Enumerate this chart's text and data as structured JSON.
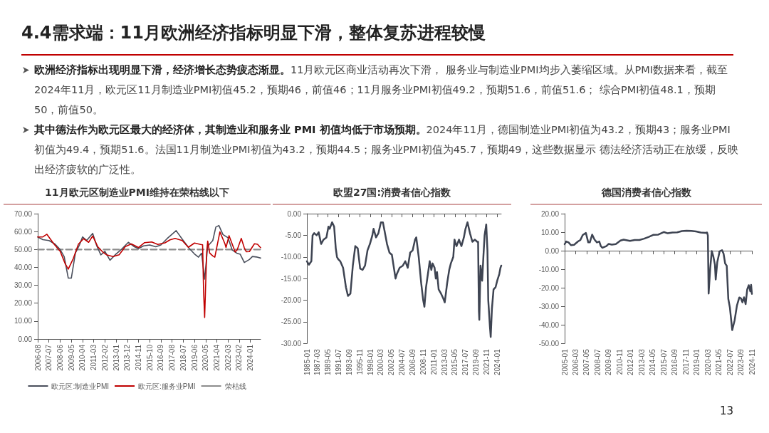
{
  "chart_data": [
    {
      "type": "other",
      "title": "4.4需求端：11月欧洲经济指标明显下滑，整体复苏进程较慢",
      "annotations": [
        "欧洲经济指标出现明显下滑，经济增长态势疲态渐显。",
        "11月欧元区商业活动再次下滑， 服务业与制造业PMI均步入萎缩区域。从PMI数据来看，截至2024年11月，欧元区11月制造业PMI初值45.2，预期46，前值46；11月服务业PMI初值49.2，预期51.6，前值51.6； 综合PMI初值48.1，预期50，前值50。",
        "其中德法作为欧元区最大的经济体，其制造业和服务业 PMI 初值均低于市场预期。",
        "2024年11月，德国制造业PMI初值为43.2，预期43；服务业PMI初值为49.4，预期51.6。法国11月制造业PMI初值为43.2，预期44.5；服务业PMI初值为45.7，预期49，这些数据显示 德法经济活动正在放缓，反映出经济疲软的广泛性。",
        "13"
      ]
    },
    {
      "type": "line",
      "title": "11月欧元区制造业PMI维持在荣枯线以下",
      "legend": "bottom",
      "marker": "none",
      "xlim": [
        "2006-08",
        "2024-11"
      ],
      "xticks": [
        "2006-08",
        "2007-07",
        "2008-06",
        "2009-05",
        "2010-04",
        "2011-03",
        "2012-02",
        "2013-01",
        "2013-12",
        "2014-11",
        "2015-10",
        "2016-09",
        "2017-08",
        "2018-07",
        "2019-06",
        "2020-05",
        "2021-04",
        "2022-03",
        "2023-02",
        "2024-01"
      ],
      "ylim": [
        0,
        70
      ],
      "yticks": [
        {
          "value": 0,
          "label": "0.00"
        },
        {
          "value": 10,
          "label": "10.00"
        },
        {
          "value": 20,
          "label": "20.00"
        },
        {
          "value": 30,
          "label": "30.00"
        },
        {
          "value": 40,
          "label": "40.00"
        },
        {
          "value": 50,
          "label": "50.00"
        },
        {
          "value": 60,
          "label": "60.00"
        },
        {
          "value": 70,
          "label": "70.00"
        }
      ],
      "series": [
        {
          "name": "欧元区:制造业PMI",
          "color": "#4a4f5c",
          "x": [
            "2006-08",
            "2007-01",
            "2007-07",
            "2008-01",
            "2008-06",
            "2008-10",
            "2009-02",
            "2009-05",
            "2009-09",
            "2010-01",
            "2010-04",
            "2010-08",
            "2011-02",
            "2011-06",
            "2011-10",
            "2012-02",
            "2012-07",
            "2013-01",
            "2013-07",
            "2014-01",
            "2014-07",
            "2014-11",
            "2015-04",
            "2015-10",
            "2016-04",
            "2016-09",
            "2017-03",
            "2017-12",
            "2018-07",
            "2019-01",
            "2019-06",
            "2019-10",
            "2020-01",
            "2020-04",
            "2020-07",
            "2020-12",
            "2021-03",
            "2021-06",
            "2021-10",
            "2022-03",
            "2022-07",
            "2022-12",
            "2023-03",
            "2023-07",
            "2023-12",
            "2024-03",
            "2024-07",
            "2024-11"
          ],
          "values": [
            57,
            55.5,
            55,
            53,
            50,
            46,
            34,
            34,
            48,
            52.5,
            57,
            55,
            59,
            52,
            47,
            49,
            44,
            47.5,
            50.5,
            54,
            51.5,
            50.5,
            52,
            52.5,
            51.5,
            52.5,
            56,
            60.5,
            55,
            50.5,
            47.5,
            45.7,
            47.9,
            33.4,
            51.8,
            55,
            62.5,
            63.4,
            58.3,
            56.5,
            49.8,
            47.8,
            47.3,
            42.7,
            44.4,
            46.1,
            45.8,
            45.2
          ]
        },
        {
          "name": "欧元区:服务业PMI",
          "color": "#c00000",
          "x": [
            "2006-08",
            "2007-01",
            "2007-05",
            "2007-12",
            "2008-06",
            "2008-11",
            "2009-02",
            "2009-07",
            "2009-12",
            "2010-05",
            "2010-10",
            "2011-02",
            "2011-07",
            "2011-12",
            "2012-04",
            "2012-10",
            "2013-04",
            "2013-10",
            "2014-04",
            "2014-11",
            "2015-05",
            "2015-12",
            "2016-06",
            "2017-01",
            "2017-06",
            "2017-11",
            "2018-06",
            "2018-12",
            "2019-06",
            "2019-12",
            "2020-02",
            "2020-03",
            "2020-04",
            "2020-06",
            "2020-07",
            "2020-09",
            "2020-12",
            "2021-02",
            "2021-07",
            "2021-12",
            "2022-01",
            "2022-04",
            "2022-10",
            "2022-12",
            "2023-04",
            "2023-07",
            "2023-09",
            "2023-12",
            "2024-03",
            "2024-05",
            "2024-08",
            "2024-10",
            "2024-11"
          ],
          "values": [
            57,
            57,
            58.5,
            53,
            49,
            42,
            39,
            45,
            53,
            56,
            54,
            57.5,
            51.5,
            48.5,
            46.9,
            46,
            47,
            51.6,
            53.1,
            51.1,
            53.8,
            54.2,
            52.8,
            53.7,
            55.4,
            56.2,
            55,
            51.2,
            53.6,
            52.8,
            52.6,
            26.4,
            12,
            48.3,
            54.7,
            48,
            46.4,
            45.7,
            59.8,
            53.1,
            51.1,
            57.7,
            48.6,
            49.8,
            56.2,
            50.9,
            48.7,
            48.8,
            51.5,
            53.2,
            52.9,
            51.6,
            51
          ]
        },
        {
          "name": "荣枯线",
          "color": "#8c8c8c",
          "line_style": "dashed",
          "x": [
            "2006-08",
            "2024-11"
          ],
          "values": [
            50,
            50
          ]
        }
      ]
    },
    {
      "type": "line",
      "title": "欧盟27国:消费者信心指数",
      "marker": "none",
      "xlim": [
        "1985-01",
        "2024-11"
      ],
      "xticks": [
        "1985-01",
        "1987-03",
        "1989-05",
        "1991-07",
        "1993-09",
        "1995-11",
        "1998-01",
        "2000-03",
        "2002-05",
        "2004-07",
        "2006-09",
        "2008-11",
        "2011-01",
        "2013-03",
        "2015-05",
        "2017-07",
        "2019-09",
        "2021-11",
        "2024-01"
      ],
      "ylim": [
        -30,
        0
      ],
      "yticks": [
        {
          "value": -30,
          "label": "-30.00"
        },
        {
          "value": -25,
          "label": "-25.00"
        },
        {
          "value": -20,
          "label": "-20.00"
        },
        {
          "value": -15,
          "label": "-15.00"
        },
        {
          "value": -10,
          "label": "-10.00"
        },
        {
          "value": -5,
          "label": "-5.00"
        },
        {
          "value": 0,
          "label": "0.00"
        }
      ],
      "series": [
        {
          "color": "#3e4452",
          "x": [
            "1985-01",
            "1985-06",
            "1985-12",
            "1986-03",
            "1986-07",
            "1987-01",
            "1987-06",
            "1987-12",
            "1988-06",
            "1989-01",
            "1989-06",
            "1989-09",
            "1990-03",
            "1990-08",
            "1990-12",
            "1991-03",
            "1991-06",
            "1991-11",
            "1992-06",
            "1993-01",
            "1993-06",
            "1993-12",
            "1994-06",
            "1994-12",
            "1995-06",
            "1995-12",
            "1996-06",
            "1996-12",
            "1997-06",
            "1997-12",
            "1998-06",
            "1998-09",
            "1999-03",
            "1999-09",
            "2000-03",
            "2000-08",
            "2000-12",
            "2001-06",
            "2001-12",
            "2002-06",
            "2003-03",
            "2003-06",
            "2004-01",
            "2004-09",
            "2005-03",
            "2005-09",
            "2006-03",
            "2006-09",
            "2007-03",
            "2007-06",
            "2007-12",
            "2008-06",
            "2008-11",
            "2009-02",
            "2009-06",
            "2009-12",
            "2010-03",
            "2010-07",
            "2010-10",
            "2011-03",
            "2011-06",
            "2011-09",
            "2012-01",
            "2012-07",
            "2012-12",
            "2013-04",
            "2013-10",
            "2014-03",
            "2014-07",
            "2015-01",
            "2015-04",
            "2015-09",
            "2016-03",
            "2016-09",
            "2017-03",
            "2017-07",
            "2017-12",
            "2018-06",
            "2018-12",
            "2019-06",
            "2019-12",
            "2020-02",
            "2020-04",
            "2020-05",
            "2020-08",
            "2020-12",
            "2021-03",
            "2021-06",
            "2021-10",
            "2022-01",
            "2022-03",
            "2022-07",
            "2022-09",
            "2022-12",
            "2023-04",
            "2023-09",
            "2024-01",
            "2024-06",
            "2024-09",
            "2024-11"
          ],
          "values": [
            -11,
            -11.8,
            -11,
            -5,
            -4.5,
            -5,
            -4.3,
            -7,
            -6,
            -5.5,
            -3,
            -3.5,
            -2,
            -3,
            -8,
            -10,
            -10.5,
            -11,
            -12.5,
            -17,
            -19,
            -18.5,
            -12,
            -7.5,
            -8,
            -12.7,
            -13,
            -12,
            -8.5,
            -7,
            -5,
            -3.5,
            -5.5,
            -4.5,
            -2,
            -2,
            -4,
            -7,
            -9,
            -9.5,
            -15,
            -14,
            -12.5,
            -12,
            -11,
            -12.5,
            -9,
            -8.5,
            -6,
            -5.5,
            -10,
            -16,
            -20,
            -21.5,
            -17,
            -13,
            -11,
            -13,
            -11.5,
            -12.5,
            -15,
            -13.5,
            -17.5,
            -18.5,
            -19.5,
            -20.5,
            -16,
            -13,
            -11.5,
            -10,
            -6,
            -7.5,
            -6,
            -7.5,
            -5.5,
            -3.5,
            -2,
            -4.5,
            -6.5,
            -6,
            -6.5,
            -6.5,
            -22.5,
            -24.5,
            -12,
            -15.5,
            -10,
            -5,
            -2.5,
            -8.5,
            -20,
            -26,
            -28.5,
            -22,
            -17.5,
            -17,
            -15.5,
            -14,
            -12.5,
            -12
          ]
        }
      ]
    },
    {
      "type": "line",
      "title": "德国消费者信心指数",
      "marker": "none",
      "xlim": [
        "2005-01",
        "2024-11"
      ],
      "xticks": [
        "2005-01",
        "2006-03",
        "2007-05",
        "2008-07",
        "2009-09",
        "2010-11",
        "2012-01",
        "2013-03",
        "2014-05",
        "2015-07",
        "2016-09",
        "2017-11",
        "2019-01",
        "2020-03",
        "2021-05",
        "2022-07",
        "2023-09",
        "2024-11"
      ],
      "ylim": [
        -50,
        20
      ],
      "yticks": [
        {
          "value": -50,
          "label": "-50.00"
        },
        {
          "value": -40,
          "label": "-40.00"
        },
        {
          "value": -30,
          "label": "-30.00"
        },
        {
          "value": -20,
          "label": "-20.00"
        },
        {
          "value": -10,
          "label": "-10.00"
        },
        {
          "value": 0,
          "label": "0.00"
        },
        {
          "value": 10,
          "label": "10.00"
        },
        {
          "value": 20,
          "label": "20.00"
        }
      ],
      "series": [
        {
          "color": "#3e4452",
          "x": [
            "2005-01",
            "2005-03",
            "2005-06",
            "2005-09",
            "2006-01",
            "2006-06",
            "2006-09",
            "2006-12",
            "2007-04",
            "2007-07",
            "2007-09",
            "2007-12",
            "2008-03",
            "2008-06",
            "2008-09",
            "2008-11",
            "2009-01",
            "2009-06",
            "2009-09",
            "2010-01",
            "2010-06",
            "2010-12",
            "2011-04",
            "2011-12",
            "2012-06",
            "2012-12",
            "2013-06",
            "2013-12",
            "2014-06",
            "2014-12",
            "2015-07",
            "2015-12",
            "2016-06",
            "2016-12",
            "2017-06",
            "2017-12",
            "2018-06",
            "2018-12",
            "2019-06",
            "2019-12",
            "2020-02",
            "2020-03",
            "2020-04",
            "2020-06",
            "2020-08",
            "2020-10",
            "2020-12",
            "2021-01",
            "2021-03",
            "2021-06",
            "2021-09",
            "2021-11",
            "2022-01",
            "2022-03",
            "2022-05",
            "2022-07",
            "2022-10",
            "2023-01",
            "2023-04",
            "2023-07",
            "2023-09",
            "2023-11",
            "2024-01",
            "2024-03",
            "2024-05",
            "2024-07",
            "2024-09",
            "2024-10",
            "2024-11"
          ],
          "values": [
            3.5,
            5,
            4.5,
            3,
            3.2,
            5,
            5.8,
            8.5,
            9.6,
            4.5,
            4.5,
            8.7,
            6,
            4.5,
            5,
            2.5,
            1.6,
            2.5,
            3.7,
            3.3,
            3.6,
            5.5,
            6,
            5.3,
            5.8,
            5.8,
            6.5,
            7.5,
            8.6,
            8.7,
            10.1,
            9.4,
            9.8,
            9.9,
            10.6,
            10.8,
            10.7,
            10.4,
            9.8,
            9.6,
            9.8,
            8.3,
            -23.1,
            -9.4,
            -0.2,
            -3.1,
            -7.5,
            -15.5,
            -6.1,
            -0.3,
            0.3,
            -1.6,
            -6.9,
            -8.1,
            -26,
            -30.6,
            -42.8,
            -37.6,
            -29.5,
            -25.2,
            -25.6,
            -27.8,
            -25.1,
            -28.8,
            -20.9,
            -18.6,
            -21.9,
            -18.4,
            -23.3
          ]
        }
      ]
    }
  ]
}
